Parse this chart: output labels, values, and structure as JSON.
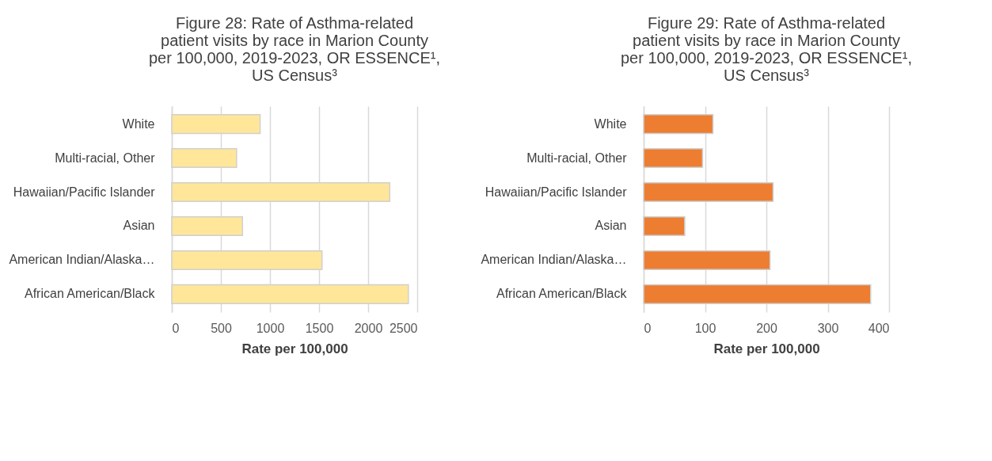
{
  "chart_data": [
    {
      "type": "bar",
      "orientation": "horizontal",
      "title": "Figure 28: Rate of Asthma-related\npatient visits by race in Marion County\nper 100,000, 2019-2023, OR ESSENCE¹,\nUS Census³",
      "xlabel": "Rate per 100,000",
      "categories": [
        "White",
        "Multi-racial, Other",
        "Hawaiian/Pacific Islander",
        "Asian",
        "American Indian/Alaska…",
        "African American/Black"
      ],
      "values": [
        900,
        660,
        2220,
        720,
        1530,
        2410
      ],
      "color": "#ffe699",
      "xlim": [
        0,
        2500
      ],
      "xticks": [
        0,
        500,
        1000,
        1500,
        2000,
        2500
      ],
      "grid": "x"
    },
    {
      "type": "bar",
      "orientation": "horizontal",
      "title": "Figure 29: Rate of Asthma-related\npatient visits by race in Marion County\nper 100,000, 2019-2023, OR ESSENCE¹,\nUS Census³",
      "xlabel": "Rate per 100,000",
      "categories": [
        "White",
        "Multi-racial, Other",
        "Hawaiian/Pacific Islander",
        "Asian",
        "American Indian/Alaska…",
        "African American/Black"
      ],
      "values": [
        113,
        96,
        211,
        67,
        206,
        370
      ],
      "color": "#ed7d31",
      "xlim": [
        0,
        400
      ],
      "xticks": [
        0,
        100,
        200,
        300,
        400
      ],
      "grid": "x"
    }
  ]
}
